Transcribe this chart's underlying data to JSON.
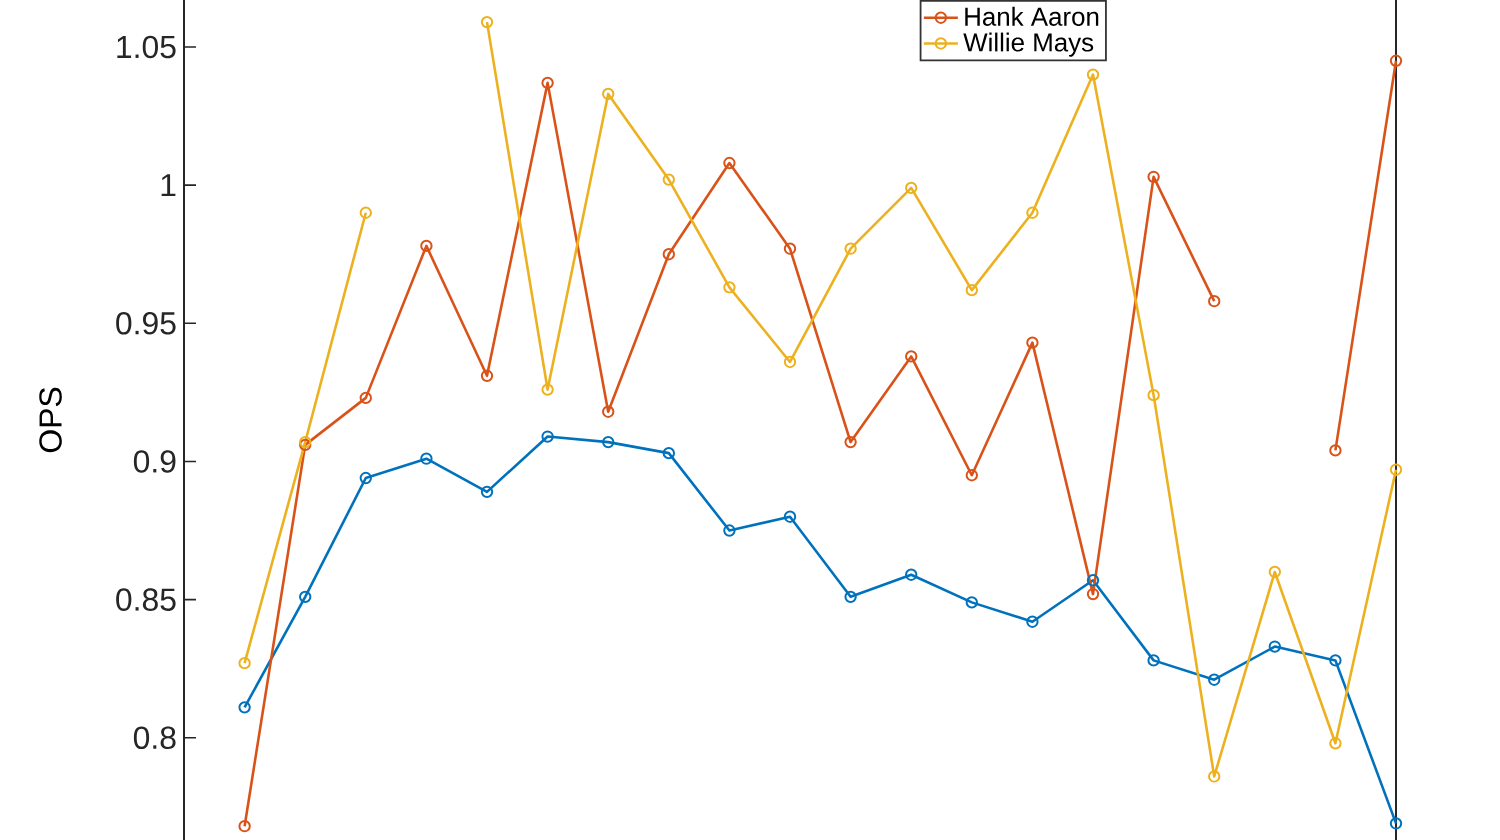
{
  "chart_data": {
    "type": "line",
    "ylabel": "OPS",
    "categories": [
      null,
      null,
      null,
      null,
      null,
      null,
      null,
      null,
      null,
      null,
      null,
      null,
      null,
      null,
      null,
      null,
      null,
      null,
      null,
      null
    ],
    "series": [
      {
        "color": "#0072bd",
        "values": [
          0.811,
          0.851,
          0.894,
          0.901,
          0.889,
          0.909,
          0.907,
          0.903,
          0.875,
          0.88,
          0.851,
          0.859,
          0.849,
          0.842,
          0.857,
          0.828,
          0.821,
          0.833,
          0.828,
          0.769
        ]
      },
      {
        "name": "Hank Aaron",
        "color": "#d95319",
        "values": [
          0.768,
          0.906,
          0.923,
          0.978,
          0.931,
          1.037,
          0.918,
          0.975,
          1.008,
          0.977,
          0.907,
          0.938,
          0.895,
          0.943,
          0.852,
          1.003,
          0.958,
          null,
          0.904,
          1.045
        ]
      },
      {
        "name": "Willie Mays",
        "color": "#edb120",
        "values": [
          0.827,
          0.907,
          0.99,
          null,
          1.059,
          0.926,
          1.033,
          1.002,
          0.963,
          0.936,
          0.977,
          0.999,
          0.962,
          0.99,
          1.04,
          0.924,
          0.786,
          0.86,
          0.798,
          0.897
        ]
      }
    ],
    "ylim": [
      0.763,
      1.067
    ],
    "yticks": [
      0.8,
      {
        "value": 0.85,
        "label": "0.85"
      },
      {
        "value": 0.9,
        "label": "0.9"
      },
      {
        "value": 0.95,
        "label": "0.95"
      },
      1,
      {
        "value": 1.05,
        "label": "1.05"
      }
    ],
    "marker": "circle",
    "line_style": "solid",
    "grid": false,
    "legend": "top right",
    "tick_labels": "y"
  }
}
